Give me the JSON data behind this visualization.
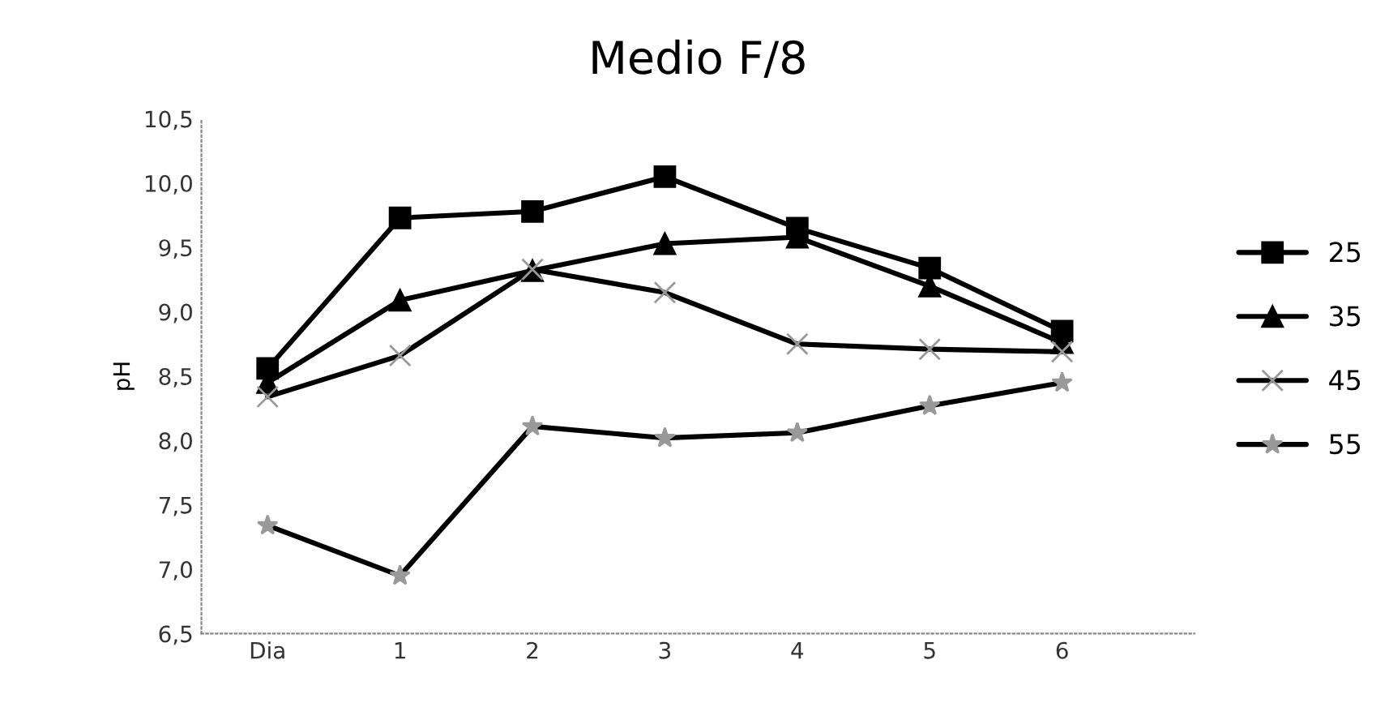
{
  "chart_data": {
    "type": "line",
    "title": "Medio F/8",
    "ylabel": "pH",
    "categories": [
      "Dia",
      "1",
      "2",
      "3",
      "4",
      "5",
      "6"
    ],
    "ylim": [
      6.5,
      10.5
    ],
    "yticks": [
      {
        "value": 6.5,
        "label": "6,5"
      },
      {
        "value": 7.0,
        "label": "7,0"
      },
      {
        "value": 7.5,
        "label": "7,5"
      },
      {
        "value": 8.0,
        "label": "8,0"
      },
      {
        "value": 8.5,
        "label": "8,5"
      },
      {
        "value": 9.0,
        "label": "9,0"
      },
      {
        "value": 9.5,
        "label": "9,5"
      },
      {
        "value": 10.0,
        "label": "10,0"
      },
      {
        "value": 10.5,
        "label": "10,5"
      }
    ],
    "grid": false,
    "legend": "right",
    "series": [
      {
        "name": "25",
        "color": "#000000",
        "marker": "square",
        "values": [
          8.56,
          9.73,
          9.78,
          10.05,
          9.65,
          9.34,
          8.85
        ]
      },
      {
        "name": "35",
        "color": "#000000",
        "marker": "triangle",
        "values": [
          8.45,
          9.09,
          9.32,
          9.53,
          9.58,
          9.2,
          8.76
        ]
      },
      {
        "name": "45",
        "color": "#000000",
        "marker": "cross",
        "values": [
          8.34,
          8.66,
          9.33,
          9.15,
          8.75,
          8.71,
          8.69
        ]
      },
      {
        "name": "55",
        "color": "#000000",
        "marker": "star",
        "values": [
          7.34,
          6.95,
          8.11,
          8.02,
          8.06,
          8.27,
          8.45
        ]
      }
    ]
  }
}
